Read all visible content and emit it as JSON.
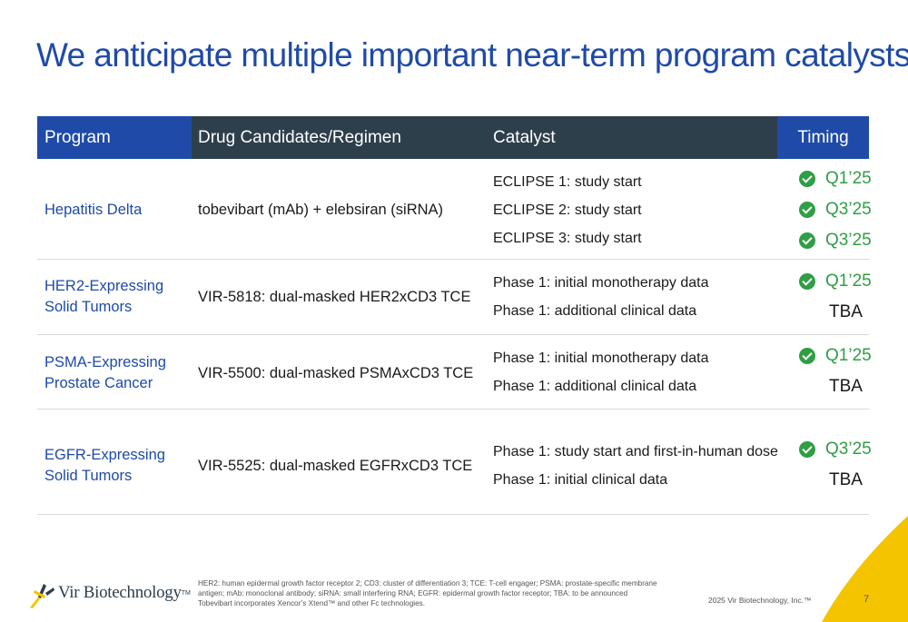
{
  "title": "We anticipate multiple important near-term program catalysts",
  "table": {
    "headers": {
      "program": "Program",
      "drug": "Drug Candidates/Regimen",
      "catalyst": "Catalyst",
      "timing": "Timing"
    },
    "rows": [
      {
        "program_lines": [
          "Hepatitis Delta"
        ],
        "drug": "tobevibart (mAb) + elebsiran (siRNA)",
        "catalysts": [
          "ECLIPSE 1: study start",
          "ECLIPSE 2: study start",
          "ECLIPSE 3: study start"
        ],
        "timings": [
          {
            "label": "Q1’25",
            "checked": true
          },
          {
            "label": "Q3’25",
            "checked": true
          },
          {
            "label": "Q3’25",
            "checked": true
          }
        ]
      },
      {
        "program_lines": [
          "HER2-Expressing",
          "Solid Tumors"
        ],
        "drug": "VIR-5818: dual-masked HER2xCD3 TCE",
        "catalysts": [
          "Phase 1: initial monotherapy data",
          "Phase 1: additional clinical data"
        ],
        "timings": [
          {
            "label": "Q1’25",
            "checked": true
          },
          {
            "label": "TBA",
            "checked": false
          }
        ]
      },
      {
        "program_lines": [
          "PSMA-Expressing",
          "Prostate Cancer"
        ],
        "drug": "VIR-5500: dual-masked PSMAxCD3 TCE",
        "catalysts": [
          "Phase 1: initial monotherapy data",
          "Phase 1: additional clinical data"
        ],
        "timings": [
          {
            "label": "Q1’25",
            "checked": true
          },
          {
            "label": "TBA",
            "checked": false
          }
        ]
      },
      {
        "program_lines": [
          "EGFR-Expressing",
          "Solid Tumors"
        ],
        "drug": "VIR-5525: dual-masked EGFRxCD3 TCE",
        "catalysts": [
          "Phase 1: study start and first-in-human dose",
          "Phase 1: initial clinical data"
        ],
        "timings": [
          {
            "label": "Q3’25",
            "checked": true
          },
          {
            "label": "TBA",
            "checked": false
          }
        ]
      }
    ]
  },
  "footer": {
    "logo_text": "Vir Biotechnology",
    "logo_tm": "TM",
    "footnote_lines": [
      "HER2: human epidermal growth factor receptor 2; CD3: cluster of differentiation 3; TCE: T-cell engager; PSMA: prostate-specific membrane",
      "antigen; mAb: monoclonal antibody; siRNA: small interfering RNA; EGFR: epidermal growth factor receptor; TBA: to be announced",
      "Tobevibart incorporates Xencor’s Xtend™ and other Fc technologies."
    ],
    "copyright": "2025 Vir Biotechnology, Inc.™",
    "page_number": "7"
  },
  "colors": {
    "brand_blue": "#1f4aa8",
    "header_dark": "#2e3f4c",
    "check_green": "#2f9e44",
    "accent_yellow": "#f5c400"
  }
}
